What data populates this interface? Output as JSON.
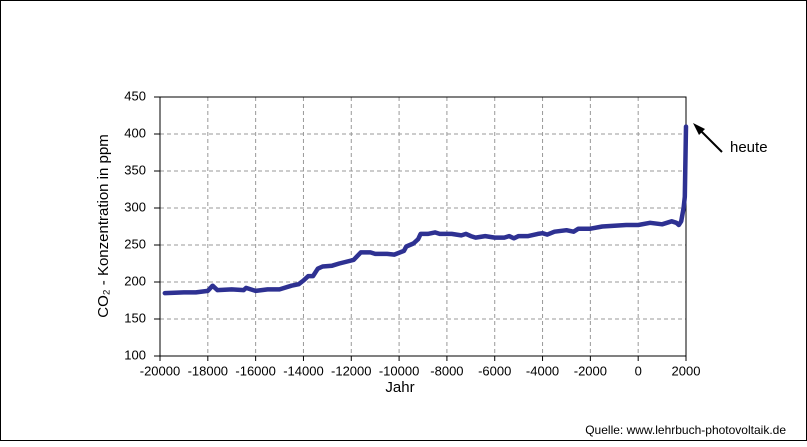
{
  "chart_data": {
    "type": "line",
    "y_label": "CO₂ - Konzentration in ppm",
    "x_label": "Jahr",
    "annotation": "heute",
    "source": "Quelle: www.lehrbuch-photovoltaik.de",
    "xlim": [
      -20000,
      2000
    ],
    "xticks": [
      -20000,
      -18000,
      -16000,
      -14000,
      -12000,
      -10000,
      -8000,
      -6000,
      -4000,
      -2000,
      0,
      2000
    ],
    "ylim": [
      100,
      450
    ],
    "yticks": [
      100,
      150,
      200,
      250,
      300,
      350,
      400,
      450
    ],
    "grid": true,
    "series": [
      {
        "color": "#2e3192",
        "x": [
          -19800,
          -19000,
          -18500,
          -18000,
          -17800,
          -17600,
          -17000,
          -16500,
          -16400,
          -16000,
          -15500,
          -15000,
          -14500,
          -14200,
          -14000,
          -13800,
          -13600,
          -13400,
          -13200,
          -12800,
          -12500,
          -12000,
          -11900,
          -11600,
          -11200,
          -11000,
          -10500,
          -10200,
          -9800,
          -9700,
          -9400,
          -9200,
          -9100,
          -8800,
          -8500,
          -8300,
          -8000,
          -7800,
          -7400,
          -7200,
          -7000,
          -6800,
          -6400,
          -6000,
          -5600,
          -5400,
          -5200,
          -5000,
          -4600,
          -4200,
          -4000,
          -3800,
          -3500,
          -3000,
          -2700,
          -2500,
          -2000,
          -1500,
          -1000,
          -500,
          0,
          500,
          1000,
          1400,
          1600,
          1700,
          1800,
          1900,
          1950,
          2000
        ],
        "values": [
          185,
          186,
          186,
          188,
          195,
          189,
          190,
          189,
          192,
          188,
          190,
          190,
          195,
          197,
          202,
          208,
          208,
          218,
          221,
          222,
          225,
          229,
          230,
          240,
          240,
          238,
          238,
          237,
          242,
          248,
          252,
          258,
          265,
          265,
          267,
          265,
          265,
          265,
          263,
          265,
          262,
          260,
          262,
          260,
          260,
          262,
          259,
          262,
          262,
          265,
          266,
          264,
          268,
          270,
          268,
          272,
          272,
          275,
          276,
          277,
          277,
          280,
          278,
          282,
          280,
          277,
          282,
          300,
          315,
          410
        ]
      }
    ]
  }
}
